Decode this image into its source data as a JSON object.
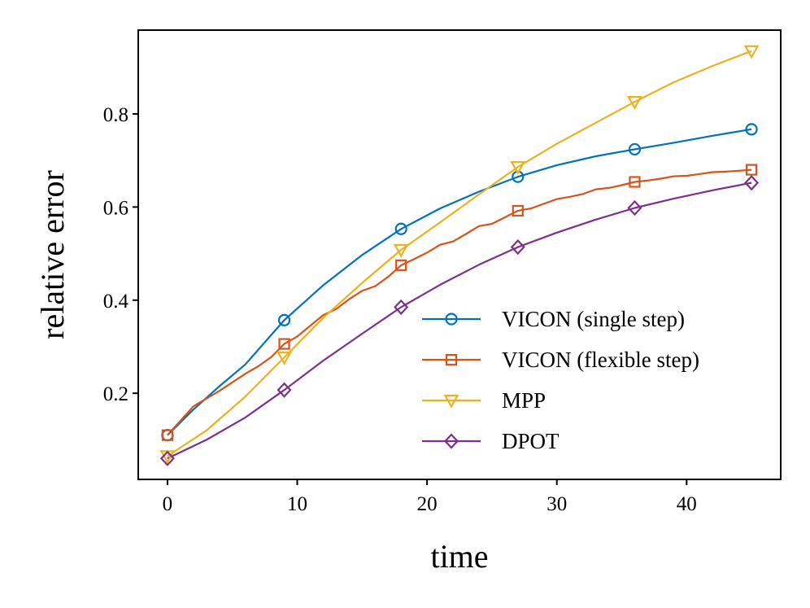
{
  "chart_data": {
    "type": "line",
    "title": "",
    "xlabel": "time",
    "ylabel": "relative error",
    "xlim": [
      -2.25,
      47.25
    ],
    "ylim": [
      0.015,
      0.98
    ],
    "xticks": [
      0,
      10,
      20,
      30,
      40
    ],
    "yticks": [
      0.2,
      0.4,
      0.6,
      0.8
    ],
    "xtick_labels": [
      "0",
      "10",
      "20",
      "30",
      "40"
    ],
    "ytick_labels": [
      "0.2",
      "0.4",
      "0.6",
      "0.8"
    ],
    "legend_position": "lower-right",
    "series": [
      {
        "name": "VICON (single step)",
        "color": "#0072BD",
        "marker": "circle",
        "x": [
          0,
          2,
          4,
          6,
          9,
          12,
          15,
          18,
          21,
          24,
          27,
          30,
          33,
          36,
          39,
          42,
          45
        ],
        "y": [
          0.11,
          0.165,
          0.215,
          0.262,
          0.357,
          0.432,
          0.497,
          0.553,
          0.597,
          0.633,
          0.665,
          0.69,
          0.709,
          0.724,
          0.738,
          0.753,
          0.767
        ]
      },
      {
        "name": "VICON (flexible step)",
        "color": "#D95319",
        "marker": "square",
        "x": [
          0,
          2,
          4,
          6,
          7,
          8,
          9,
          10,
          11,
          12,
          13,
          14,
          15,
          16,
          17,
          18,
          19,
          20,
          21,
          22,
          23,
          24,
          25,
          26,
          27,
          28,
          29,
          30,
          31,
          32,
          33,
          34,
          35,
          36,
          37,
          38,
          39,
          40,
          41,
          42,
          43,
          44,
          45
        ],
        "y": [
          0.11,
          0.172,
          0.205,
          0.242,
          0.258,
          0.278,
          0.306,
          0.322,
          0.345,
          0.368,
          0.381,
          0.402,
          0.42,
          0.43,
          0.45,
          0.475,
          0.488,
          0.502,
          0.519,
          0.526,
          0.542,
          0.559,
          0.564,
          0.578,
          0.592,
          0.597,
          0.607,
          0.617,
          0.622,
          0.628,
          0.638,
          0.641,
          0.647,
          0.654,
          0.657,
          0.661,
          0.666,
          0.667,
          0.671,
          0.675,
          0.676,
          0.678,
          0.68
        ]
      },
      {
        "name": "MPP",
        "color": "#EDB120",
        "marker": "triangle-down",
        "x": [
          0,
          3,
          6,
          9,
          12,
          15,
          18,
          21,
          24,
          27,
          30,
          33,
          36,
          39,
          42,
          45
        ],
        "y": [
          0.065,
          0.12,
          0.193,
          0.277,
          0.362,
          0.437,
          0.508,
          0.567,
          0.627,
          0.686,
          0.736,
          0.781,
          0.826,
          0.868,
          0.903,
          0.935
        ]
      },
      {
        "name": "DPOT",
        "color": "#7E2F8E",
        "marker": "diamond",
        "x": [
          0,
          3,
          6,
          9,
          12,
          15,
          18,
          21,
          24,
          27,
          30,
          33,
          36,
          39,
          42,
          45
        ],
        "y": [
          0.06,
          0.1,
          0.148,
          0.207,
          0.27,
          0.328,
          0.385,
          0.433,
          0.476,
          0.514,
          0.545,
          0.573,
          0.598,
          0.618,
          0.636,
          0.652
        ]
      }
    ]
  },
  "marker_x": [
    0,
    9,
    18,
    27,
    36,
    45
  ]
}
